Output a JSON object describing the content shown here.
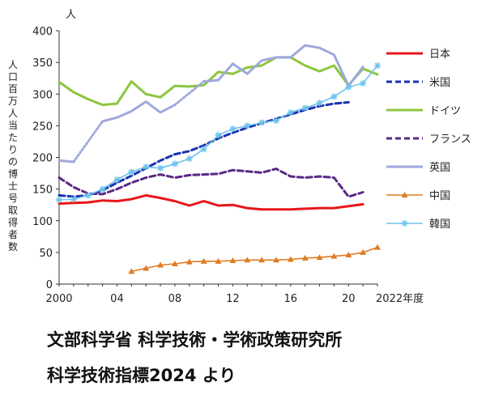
{
  "chart_data": {
    "type": "line",
    "unit_label": "人",
    "ylabel": "人口百万人当たりの博士号取得者数",
    "xlabel_suffix": "2022年度",
    "xlim": [
      2000,
      2022
    ],
    "ylim": [
      0,
      400
    ],
    "y_ticks": [
      0,
      50,
      100,
      150,
      200,
      250,
      300,
      350,
      400
    ],
    "x_ticks": [
      {
        "value": 2000,
        "label": "2000"
      },
      {
        "value": 2004,
        "label": "04"
      },
      {
        "value": 2008,
        "label": "08"
      },
      {
        "value": 2012,
        "label": "12"
      },
      {
        "value": 2016,
        "label": "16"
      },
      {
        "value": 2020,
        "label": "20"
      }
    ],
    "series": [
      {
        "name": "日本",
        "color": "#e8161b",
        "style": "solid",
        "marker": "none",
        "x": [
          2000,
          2001,
          2002,
          2003,
          2004,
          2005,
          2006,
          2007,
          2008,
          2009,
          2010,
          2011,
          2012,
          2013,
          2014,
          2015,
          2016,
          2017,
          2018,
          2019,
          2020,
          2021
        ],
        "y": [
          127,
          128,
          129,
          132,
          131,
          134,
          140,
          136,
          131,
          124,
          131,
          124,
          125,
          120,
          118,
          118,
          118,
          119,
          120,
          120,
          123,
          126
        ]
      },
      {
        "name": "米国",
        "color": "#1a33b0",
        "style": "dashed",
        "marker": "none",
        "x": [
          2000,
          2001,
          2002,
          2003,
          2004,
          2005,
          2006,
          2007,
          2008,
          2009,
          2010,
          2011,
          2012,
          2013,
          2014,
          2015,
          2016,
          2017,
          2018,
          2019,
          2020
        ],
        "y": [
          140,
          138,
          140,
          148,
          160,
          171,
          183,
          195,
          205,
          210,
          219,
          230,
          239,
          247,
          254,
          261,
          268,
          275,
          281,
          285,
          287
        ]
      },
      {
        "name": "ドイツ",
        "color": "#8cc63f",
        "style": "solid",
        "marker": "none",
        "x": [
          2000,
          2001,
          2002,
          2003,
          2004,
          2005,
          2006,
          2007,
          2008,
          2009,
          2010,
          2011,
          2012,
          2013,
          2014,
          2015,
          2016,
          2017,
          2018,
          2019,
          2020,
          2021,
          2022
        ],
        "y": [
          319,
          303,
          292,
          283,
          285,
          320,
          300,
          295,
          313,
          312,
          314,
          335,
          332,
          342,
          345,
          358,
          358,
          345,
          336,
          345,
          314,
          340,
          331
        ]
      },
      {
        "name": "フランス",
        "color": "#5a2885",
        "style": "dashed",
        "marker": "none",
        "x": [
          2000,
          2001,
          2002,
          2003,
          2004,
          2005,
          2006,
          2007,
          2008,
          2009,
          2010,
          2011,
          2012,
          2013,
          2014,
          2015,
          2016,
          2017,
          2018,
          2019,
          2020,
          2021
        ],
        "y": [
          168,
          153,
          143,
          142,
          150,
          160,
          168,
          173,
          168,
          172,
          173,
          174,
          180,
          178,
          176,
          182,
          170,
          168,
          170,
          168,
          138,
          145
        ]
      },
      {
        "name": "英国",
        "color": "#9fa8dc",
        "style": "solid",
        "marker": "none",
        "x": [
          2000,
          2001,
          2002,
          2003,
          2004,
          2005,
          2006,
          2007,
          2008,
          2009,
          2010,
          2011,
          2012,
          2013,
          2014,
          2015,
          2016,
          2017,
          2018,
          2019,
          2020,
          2021
        ],
        "y": [
          195,
          193,
          null,
          257,
          263,
          273,
          288,
          271,
          283,
          null,
          320,
          322,
          348,
          332,
          353,
          358,
          358,
          377,
          373,
          362,
          313,
          343
        ]
      },
      {
        "name": "中国",
        "color": "#e07b22",
        "style": "solid",
        "marker": "triangle",
        "x": [
          2005,
          2006,
          2007,
          2008,
          2009,
          2010,
          2011,
          2012,
          2013,
          2014,
          2015,
          2016,
          2017,
          2018,
          2019,
          2020,
          2021,
          2022
        ],
        "y": [
          20,
          25,
          30,
          32,
          35,
          36,
          36,
          37,
          38,
          38,
          38,
          39,
          41,
          42,
          44,
          46,
          50,
          58
        ]
      },
      {
        "name": "韓国",
        "color": "#6ec3ec",
        "style": "solid",
        "marker": "star",
        "x": [
          2000,
          2001,
          2002,
          2003,
          2004,
          2005,
          2006,
          2007,
          2008,
          2009,
          2010,
          2011,
          2012,
          2013,
          2014,
          2015,
          2016,
          2017,
          2018,
          2019,
          2020,
          2021,
          2022
        ],
        "y": [
          133,
          134,
          140,
          150,
          165,
          177,
          185,
          183,
          190,
          198,
          213,
          235,
          245,
          250,
          255,
          258,
          271,
          278,
          286,
          296,
          311,
          317,
          345
        ]
      }
    ],
    "gap_links": [
      {
        "series": "英国",
        "x": [
          2001,
          2003
        ],
        "y": [
          193,
          257
        ]
      },
      {
        "series": "英国",
        "x": [
          2008,
          2010
        ],
        "y": [
          283,
          320
        ]
      }
    ]
  },
  "source": {
    "line1": "文部科学省 科学技術・学術政策研究所",
    "line2": "科学技術指標2024 より"
  }
}
